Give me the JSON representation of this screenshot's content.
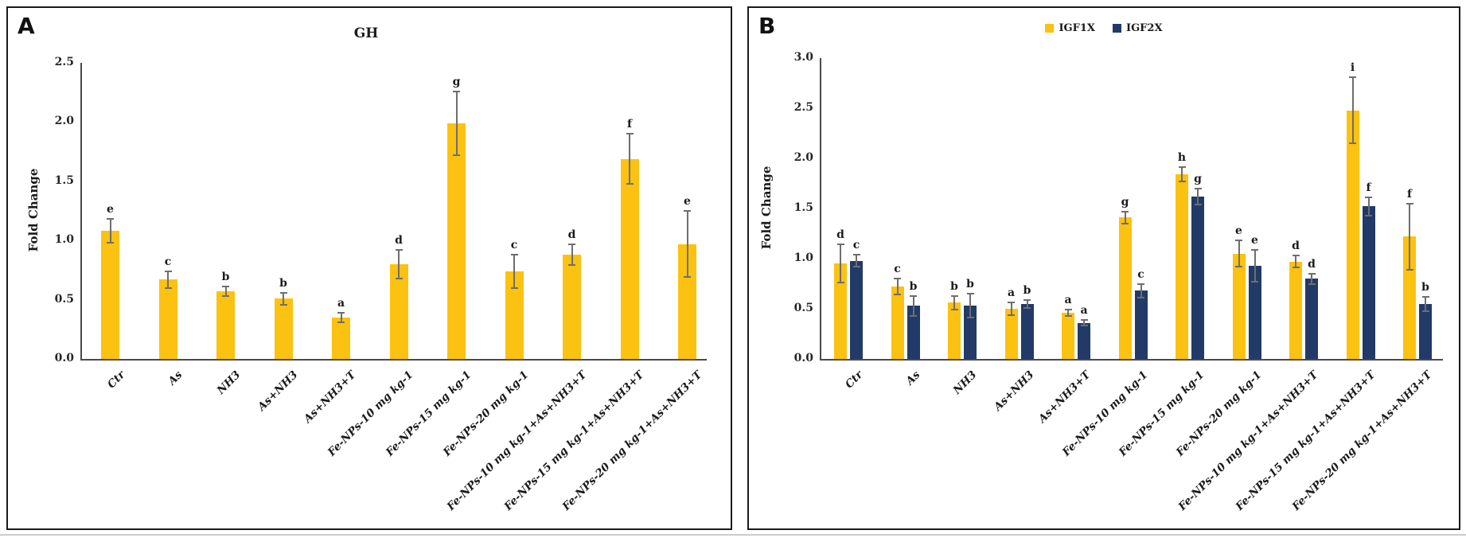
{
  "panel_a": {
    "label": "A"
  },
  "panel_b": {
    "label": "B"
  },
  "colors": {
    "bar_yellow": "#FCC211",
    "bar_navy": "#223A67",
    "error_bar": "#6e6e6e",
    "axis": "#4a4a4a",
    "text": "#1a1a1a",
    "panel_border": "#1a1a1a"
  },
  "chart_data": [
    {
      "panel": "A",
      "type": "bar",
      "title": "GH",
      "xlabel": "",
      "ylabel": "Fold Change",
      "ylim": [
        0.0,
        2.5
      ],
      "yticks": [
        "0.0",
        "0.5",
        "1.0",
        "1.5",
        "2.0",
        "2.5"
      ],
      "grid": false,
      "legend_position": "none",
      "categories": [
        "Ctr",
        "As",
        "NH3",
        "As+NH3",
        "As+NH3+T",
        "Fe-NPs-10 mg kg-1",
        "Fe-NPs-15 mg kg-1",
        "Fe-NPs-20 mg kg-1",
        "Fe-NPs-10 mg kg-1+As+NH3+T",
        "Fe-NPs-15 mg kg-1+As+NH3+T",
        "Fe-NPs-20 mg kg-1+As+NH3+T"
      ],
      "series": [
        {
          "name": "GH",
          "color": "#FCC211",
          "values": [
            1.08,
            0.67,
            0.57,
            0.51,
            0.35,
            0.8,
            1.99,
            0.74,
            0.88,
            1.69,
            0.97
          ],
          "errors": [
            0.1,
            0.07,
            0.04,
            0.05,
            0.04,
            0.12,
            0.27,
            0.14,
            0.09,
            0.21,
            0.28
          ],
          "sig_letters": [
            "e",
            "c",
            "b",
            "b",
            "a",
            "d",
            "g",
            "c",
            "d",
            "f",
            "e"
          ]
        }
      ]
    },
    {
      "panel": "B",
      "type": "bar",
      "title": "",
      "xlabel": "",
      "ylabel": "Fold Change",
      "ylim": [
        0.0,
        3.0
      ],
      "yticks": [
        "0.0",
        "0.5",
        "1.0",
        "1.5",
        "2.0",
        "2.5",
        "3.0"
      ],
      "grid": false,
      "legend_position": "top",
      "categories": [
        "Ctr",
        "As",
        "NH3",
        "As+NH3",
        "As+NH3+T",
        "Fe-NPs-10 mg kg-1",
        "Fe-NPs-15 mg kg-1",
        "Fe-NPs-20 mg kg-1",
        "Fe-NPs-10 mg kg-1+As+NH3+T",
        "Fe-NPs-15 mg kg-1+As+NH3+T",
        "Fe-NPs-20 mg kg-1+As+NH3+T"
      ],
      "series": [
        {
          "name": "IGF1X",
          "color": "#FCC211",
          "values": [
            0.95,
            0.72,
            0.56,
            0.5,
            0.46,
            1.41,
            1.84,
            1.05,
            0.97,
            2.48,
            1.22
          ],
          "errors": [
            0.19,
            0.08,
            0.07,
            0.06,
            0.03,
            0.06,
            0.07,
            0.13,
            0.06,
            0.33,
            0.33
          ],
          "sig_letters": [
            "d",
            "c",
            "b",
            "a",
            "a",
            "g",
            "h",
            "e",
            "d",
            "i",
            "f"
          ]
        },
        {
          "name": "IGF2X",
          "color": "#223A67",
          "values": [
            0.98,
            0.53,
            0.53,
            0.55,
            0.36,
            0.68,
            1.62,
            0.93,
            0.8,
            1.52,
            0.55
          ],
          "errors": [
            0.06,
            0.1,
            0.12,
            0.04,
            0.03,
            0.07,
            0.08,
            0.16,
            0.05,
            0.09,
            0.07
          ],
          "sig_letters": [
            "c",
            "b",
            "b",
            "b",
            "a",
            "c",
            "g",
            "e",
            "d",
            "f",
            "b"
          ]
        }
      ]
    }
  ]
}
